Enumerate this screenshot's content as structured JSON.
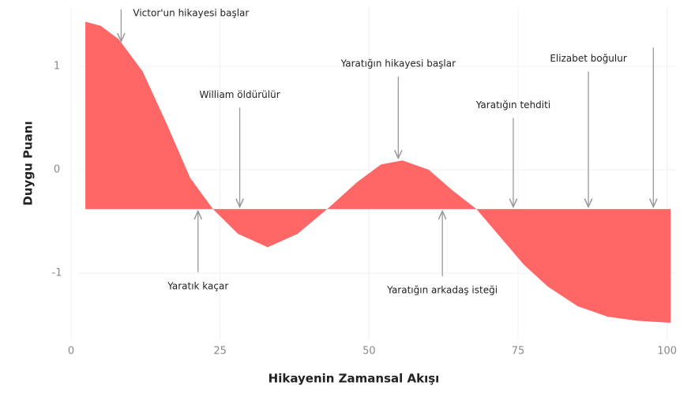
{
  "chart_data": {
    "type": "area",
    "xlabel": "Hikayenin Zamansal Akışı",
    "ylabel": "Duygu Puanı",
    "x": [
      2.4,
      5,
      8,
      12,
      16,
      20,
      23.8,
      28,
      33,
      38,
      43,
      48,
      52,
      55.6,
      60,
      64,
      68,
      72,
      76,
      80,
      85,
      90,
      95,
      100.6
    ],
    "values": [
      1.43,
      1.39,
      1.26,
      0.95,
      0.45,
      -0.08,
      -0.38,
      -0.62,
      -0.75,
      -0.62,
      -0.38,
      -0.12,
      0.05,
      0.09,
      0.0,
      -0.2,
      -0.38,
      -0.65,
      -0.92,
      -1.13,
      -1.32,
      -1.42,
      -1.46,
      -1.48
    ],
    "baseline": -0.38,
    "color": "#ff6666",
    "xlim": [
      0,
      101.5
    ],
    "ylim": [
      -1.64,
      1.64
    ],
    "xticks": [
      0,
      25,
      50,
      75,
      100
    ],
    "yticks": [
      -1,
      0,
      1
    ],
    "grid": true,
    "annotations": [
      {
        "text": "Victor'un hikayesi başlar",
        "x": 8.4,
        "y": 1.24,
        "y_from": 1.55,
        "ha": "left"
      },
      {
        "text": "William öldürülür",
        "x": 28.3,
        "y": -0.36,
        "y_from": 0.6
      },
      {
        "text": "Yaratığın hikayesi başlar",
        "x": 54.9,
        "y": 0.11,
        "y_from": 0.9
      },
      {
        "text": "Yaratığın tehditi",
        "x": 74.2,
        "y": -0.36,
        "y_from": 0.5
      },
      {
        "text": "Elizabet boğulur",
        "x": 86.8,
        "y": -0.36,
        "y_from": 0.95
      },
      {
        "x": 97.7,
        "y": -0.36,
        "y_from": 1.18
      },
      {
        "text": "Yaratık kaçar",
        "x": 21.3,
        "y": -0.4,
        "y_from": -0.99
      },
      {
        "text": "Yaratığın arkadaş isteği",
        "x": 62.3,
        "y": -0.4,
        "y_from": -1.03
      }
    ]
  }
}
